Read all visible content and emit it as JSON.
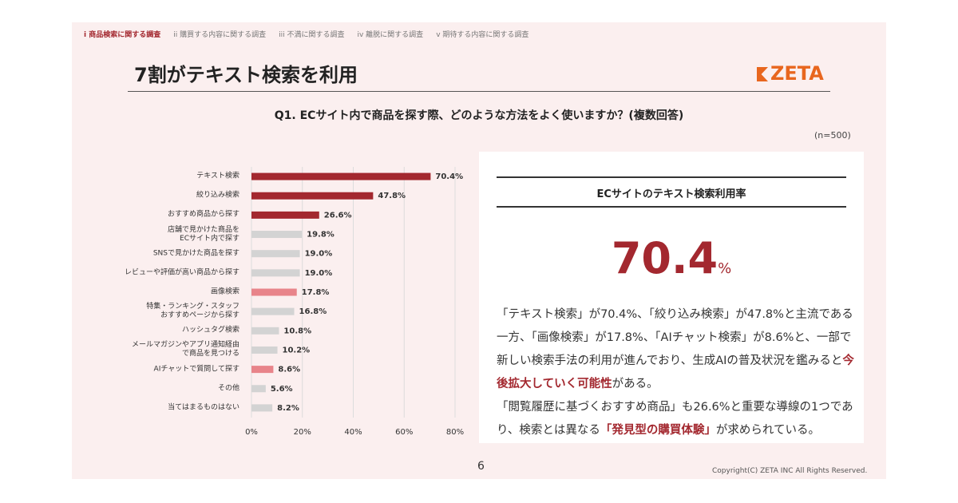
{
  "nav": [
    {
      "text": "i 商品検索に関する調査",
      "active": true
    },
    {
      "text": "ii 購買する内容に関する調査",
      "active": false
    },
    {
      "text": "iii 不満に関する調査",
      "active": false
    },
    {
      "text": "iv 離脱に関する調査",
      "active": false
    },
    {
      "text": "v 期待する内容に関する調査",
      "active": false
    }
  ],
  "header": {
    "title": "7割がテキスト検索を利用",
    "logo": "ZETA"
  },
  "question": "Q1. ECサイト内で商品を探す際、どのような方法をよく使いますか？(複数回答)",
  "sample": "(n=500)",
  "chart_data": {
    "type": "bar",
    "orientation": "horizontal",
    "categories": [
      "テキスト検索",
      "絞り込み検索",
      "おすすめ商品から探す",
      "店舗で見かけた商品を\nECサイト内で探す",
      "SNSで見かけた商品を探す",
      "レビューや評価が高い商品から探す",
      "画像検索",
      "特集・ランキング・スタッフ\nおすすめページから探す",
      "ハッシュタグ検索",
      "メールマガジンやアプリ通知経由\nで商品を見つける",
      "AIチャットで質問して探す",
      "その他",
      "当てはまるものはない"
    ],
    "values": [
      70.4,
      47.8,
      26.6,
      19.8,
      19.0,
      19.0,
      17.8,
      16.8,
      10.8,
      10.2,
      8.6,
      5.6,
      8.2
    ],
    "value_labels": [
      "70.4%",
      "47.8%",
      "26.6%",
      "19.8%",
      "19.0%",
      "19.0%",
      "17.8%",
      "16.8%",
      "10.8%",
      "10.2%",
      "8.6%",
      "5.6%",
      "8.2%"
    ],
    "colors": [
      "#a3282f",
      "#a3282f",
      "#a3282f",
      "#d3d3d3",
      "#d3d3d3",
      "#d3d3d3",
      "#e8848a",
      "#d3d3d3",
      "#d3d3d3",
      "#d3d3d3",
      "#e8848a",
      "#d3d3d3",
      "#d3d3d3"
    ],
    "xlim": [
      0,
      80
    ],
    "xticks": [
      {
        "value": 0,
        "label": "0%"
      },
      {
        "value": 20,
        "label": "20%"
      },
      {
        "value": 40,
        "label": "40%"
      },
      {
        "value": 60,
        "label": "60%"
      },
      {
        "value": 80,
        "label": "80%"
      }
    ],
    "grid": true
  },
  "panel": {
    "heading": "ECサイトのテキスト検索利用率",
    "highlight": {
      "value": "70.4",
      "unit": "%"
    },
    "paragraphs": [
      [
        {
          "text": "「テキスト検索」が70.4%、「絞り込み検索」が47.8%と主流である一方、「画像検索」が17.8%、「AIチャット検索」が8.6%と、一部で新しい検索手法の利用が進んでおり、生成AIの普及状況を鑑みると",
          "emphasis": false
        },
        {
          "text": "今後拡大していく可能性",
          "emphasis": true
        },
        {
          "text": "がある。",
          "emphasis": false
        }
      ],
      [
        {
          "text": "「閲覧履歴に基づくおすすめ商品」も26.6%と重要な導線の1つであり、検索とは異なる",
          "emphasis": false
        },
        {
          "text": "「発見型の購買体験」",
          "emphasis": true
        },
        {
          "text": "が求められている。",
          "emphasis": false
        }
      ]
    ]
  },
  "footer": {
    "page": "6",
    "copyright": "Copyright(C) ZETA INC All Rights Reserved."
  }
}
